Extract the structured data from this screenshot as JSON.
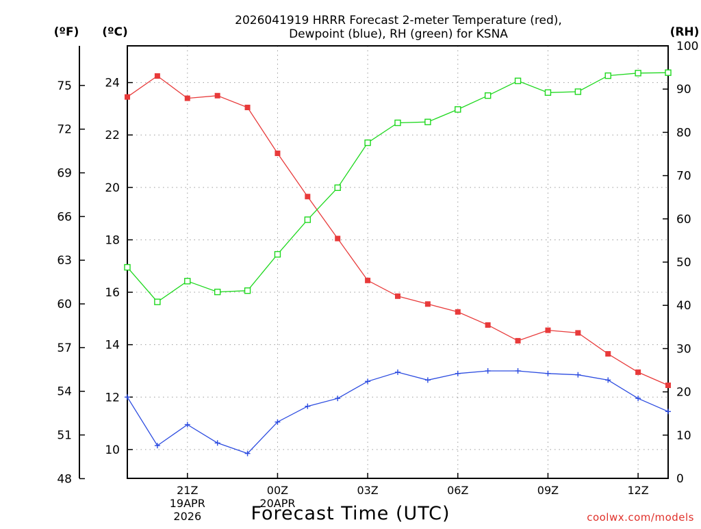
{
  "chart_data": {
    "type": "line",
    "title_line1": "2026041919 HRRR Forecast 2-meter Temperature (red),",
    "title_line2": "Dewpoint (blue), RH (green) for KSNA",
    "xlabel": "Forecast Time (UTC)",
    "credit": "coolwx.com/models",
    "left_unit_f": "(ºF)",
    "left_unit_c": "(ºC)",
    "right_unit": "(RH)",
    "x_hours": [
      0,
      1,
      2,
      3,
      4,
      5,
      6,
      7,
      8,
      9,
      10,
      11,
      12,
      13,
      14,
      15,
      16,
      17,
      18
    ],
    "x_ticks": [
      {
        "hour": 2,
        "lines": [
          "21Z",
          "19APR",
          "2026"
        ]
      },
      {
        "hour": 5,
        "lines": [
          "00Z",
          "20APR"
        ]
      },
      {
        "hour": 8,
        "lines": [
          "03Z"
        ]
      },
      {
        "hour": 11,
        "lines": [
          "06Z"
        ]
      },
      {
        "hour": 14,
        "lines": [
          "09Z"
        ]
      },
      {
        "hour": 17,
        "lines": [
          "12Z"
        ]
      }
    ],
    "x_range": [
      0,
      18
    ],
    "celsius_range": [
      8.9,
      25.4
    ],
    "celsius_ticks": [
      10,
      12,
      14,
      16,
      18,
      20,
      22,
      24
    ],
    "fahrenheit_ticks": [
      48,
      51,
      54,
      57,
      60,
      63,
      66,
      69,
      72,
      75
    ],
    "rh_range": [
      0,
      100
    ],
    "rh_ticks": [
      0,
      10,
      20,
      30,
      40,
      50,
      60,
      70,
      80,
      90,
      100
    ],
    "grid": true,
    "series": [
      {
        "name": "Temperature",
        "color": "#e83a3a",
        "axis": "celsius",
        "marker": "filled-square",
        "values": [
          23.45,
          24.25,
          23.4,
          23.5,
          23.05,
          21.3,
          19.65,
          18.05,
          16.45,
          15.85,
          15.55,
          15.25,
          14.75,
          14.15,
          14.55,
          14.45,
          13.65,
          12.95,
          12.45
        ]
      },
      {
        "name": "Dewpoint",
        "color": "#2b4be0",
        "axis": "celsius",
        "marker": "plus",
        "values": [
          12.0,
          10.15,
          10.95,
          10.25,
          9.85,
          11.05,
          11.65,
          11.95,
          12.6,
          12.95,
          12.65,
          12.9,
          13.0,
          13.0,
          12.9,
          12.85,
          12.65,
          11.95,
          11.45
        ]
      },
      {
        "name": "RH",
        "color": "#1ed81e",
        "axis": "rh",
        "marker": "open-square",
        "values": [
          48.8,
          40.8,
          45.6,
          43.1,
          43.4,
          51.8,
          59.8,
          67.2,
          77.6,
          82.2,
          82.4,
          85.3,
          88.5,
          91.9,
          89.2,
          89.4,
          93.1,
          93.7,
          93.8
        ]
      }
    ]
  }
}
